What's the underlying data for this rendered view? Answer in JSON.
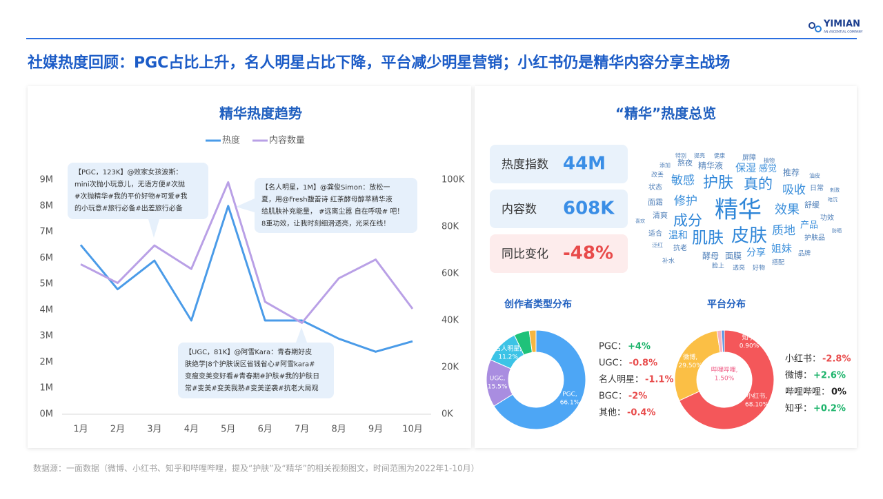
{
  "header": {
    "title": "社媒热度回顾：PGC占比上升，名人明星占比下降，平台减少明星营销；小红书仍是精华内容分享主战场",
    "logo": "YIMIAN",
    "logo_sub": "AN ASCENTIAL COMPANY"
  },
  "chart_data": [
    {
      "type": "line",
      "title": "精华热度趋势",
      "categories": [
        "1月",
        "2月",
        "3月",
        "4月",
        "5月",
        "6月",
        "7月",
        "8月",
        "9月",
        "10月"
      ],
      "series": [
        {
          "name": "热度",
          "color": "#4a9be8",
          "values": [
            6.5,
            4.8,
            5.9,
            3.6,
            8.0,
            3.6,
            3.6,
            2.9,
            2.4,
            2.8
          ]
        },
        {
          "name": "内容数量",
          "color": "#b9a0e6",
          "axis": "y2",
          "values": [
            64,
            56,
            72,
            62,
            99,
            48,
            39,
            58,
            66,
            45
          ]
        }
      ],
      "ylim": [
        0,
        9
      ],
      "yticks": [
        {
          "value": 0,
          "label": "0M"
        },
        {
          "value": 1,
          "label": "1M"
        },
        {
          "value": 2,
          "label": "2M"
        },
        {
          "value": 3,
          "label": "3M"
        },
        {
          "value": 4,
          "label": "4M"
        },
        {
          "value": 5,
          "label": "5M"
        },
        {
          "value": 6,
          "label": "6M"
        },
        {
          "value": 7,
          "label": "7M"
        },
        {
          "value": 8,
          "label": "8M"
        },
        {
          "value": 9,
          "label": "9M"
        }
      ],
      "y2lim": [
        0,
        100
      ],
      "y2ticks": [
        {
          "value": 0,
          "label": "0K"
        },
        {
          "value": 20,
          "label": "20K"
        },
        {
          "value": 40,
          "label": "40K"
        },
        {
          "value": 60,
          "label": "60K"
        },
        {
          "value": 80,
          "label": "80K"
        },
        {
          "value": 100,
          "label": "100K"
        }
      ],
      "annotations": [
        [
          "【PGC，123K】@败家女孩波斯：",
          "mini次抛小玩意儿，无语方便#次抛",
          "#次抛精华#我的平价好物#可爱#我",
          "的小玩意#旅行必备#出差旅行必备"
        ],
        [
          "【名人明星，1M】@龚俊Simon：放松一",
          "夏，用@Fresh馥蕾诗 红茶酵母醇萃精华液",
          "给肌肤补充能量， #远离尘嚣 自在呼吸# 吧！",
          "8重功效，让我时刻细滑透亮，光采在线！"
        ],
        [
          "【UGC，81K】@阿雪Kara：青春期好皮",
          "肤绝学|8个护肤误区省钱省心#阿雪kara#",
          "变瘦变美变好看#青春期#护肤#我的护肤日",
          "常#变美#变美我熟#变美逆袭#抗老大局观"
        ]
      ]
    },
    {
      "type": "donut",
      "title": "创作者类型分布",
      "categories": [
        "PGC",
        "UGC",
        "名人明星",
        "BGC",
        "其他"
      ],
      "values": [
        66.1,
        15.5,
        11.2,
        5.0,
        2.2
      ],
      "value_labels": [
        "66.1%",
        "15.5%",
        "11.2%",
        null,
        null
      ],
      "slice_labels": [
        "PGC,",
        "UGC,",
        "名人明星,",
        null,
        null
      ],
      "colors": [
        "#4da6f5",
        "#a98de0",
        "#3cc3e6",
        "#1fc27a",
        "#f5b642"
      ],
      "legend": [
        {
          "label": "PGC：",
          "change": "+4%"
        },
        {
          "label": "UGC：",
          "change": "-0.8%"
        },
        {
          "label": "名人明星：",
          "change": "-1.1%"
        },
        {
          "label": "BGC：",
          "change": "-2%"
        },
        {
          "label": "其他：",
          "change": "-0.4%"
        }
      ]
    },
    {
      "type": "donut",
      "title": "平台分布",
      "categories": [
        "小红书",
        "微博",
        "哔哩哔哩",
        "知乎"
      ],
      "values": [
        68.1,
        29.5,
        1.5,
        0.9
      ],
      "value_labels": [
        "68.10%",
        "29.50%",
        "1.50%",
        "0.90%"
      ],
      "slice_labels": [
        "小红书,",
        "微博,",
        "哔哩哔哩,",
        "知乎,"
      ],
      "colors": [
        "#f4575a",
        "#fbbf45",
        "#f6b3c0",
        "#4d8fe0"
      ],
      "legend": [
        {
          "label": "小红书：",
          "change": "-2.8%"
        },
        {
          "label": "微博：",
          "change": "+2.6%"
        },
        {
          "label": "哔哩哔哩：",
          "change": "0%"
        },
        {
          "label": "知乎：",
          "change": "+0.2%"
        }
      ]
    }
  ],
  "overview": {
    "title": "“精华”热度总览",
    "kpis": [
      {
        "label": "热度指数",
        "value": "44M"
      },
      {
        "label": "内容数",
        "value": "608K"
      },
      {
        "label": "同比变化",
        "value": "-48%"
      }
    ]
  },
  "word_cloud": [
    "特别",
    "提亮",
    "健康",
    "屏障",
    "植物",
    "添加",
    "熬夜",
    "精华液",
    "保湿",
    "感觉",
    "推荐",
    "油皮",
    "改善",
    "敏感",
    "护肤",
    "真的",
    "吸收",
    "日常",
    "刺激",
    "状态",
    "修护",
    "精华",
    "效果",
    "舒缓",
    "暗沉",
    "面霜",
    "清爽",
    "成分",
    "质地",
    "产品",
    "功效",
    "喜欢",
    "适合",
    "温和",
    "肌肤",
    "皮肤",
    "姐妹",
    "护肤品",
    "防晒",
    "泛红",
    "抗老",
    "分享",
    "品牌",
    "补水",
    "酵母",
    "面膜",
    "搭配",
    "脸上",
    "透亮",
    "好物"
  ],
  "footer": "数据源：一面数据（微博、小红书、知乎和哔哩哔哩，提及“护肤”及“精华”的相关视频图文，时间范围为2022年1-10月）"
}
